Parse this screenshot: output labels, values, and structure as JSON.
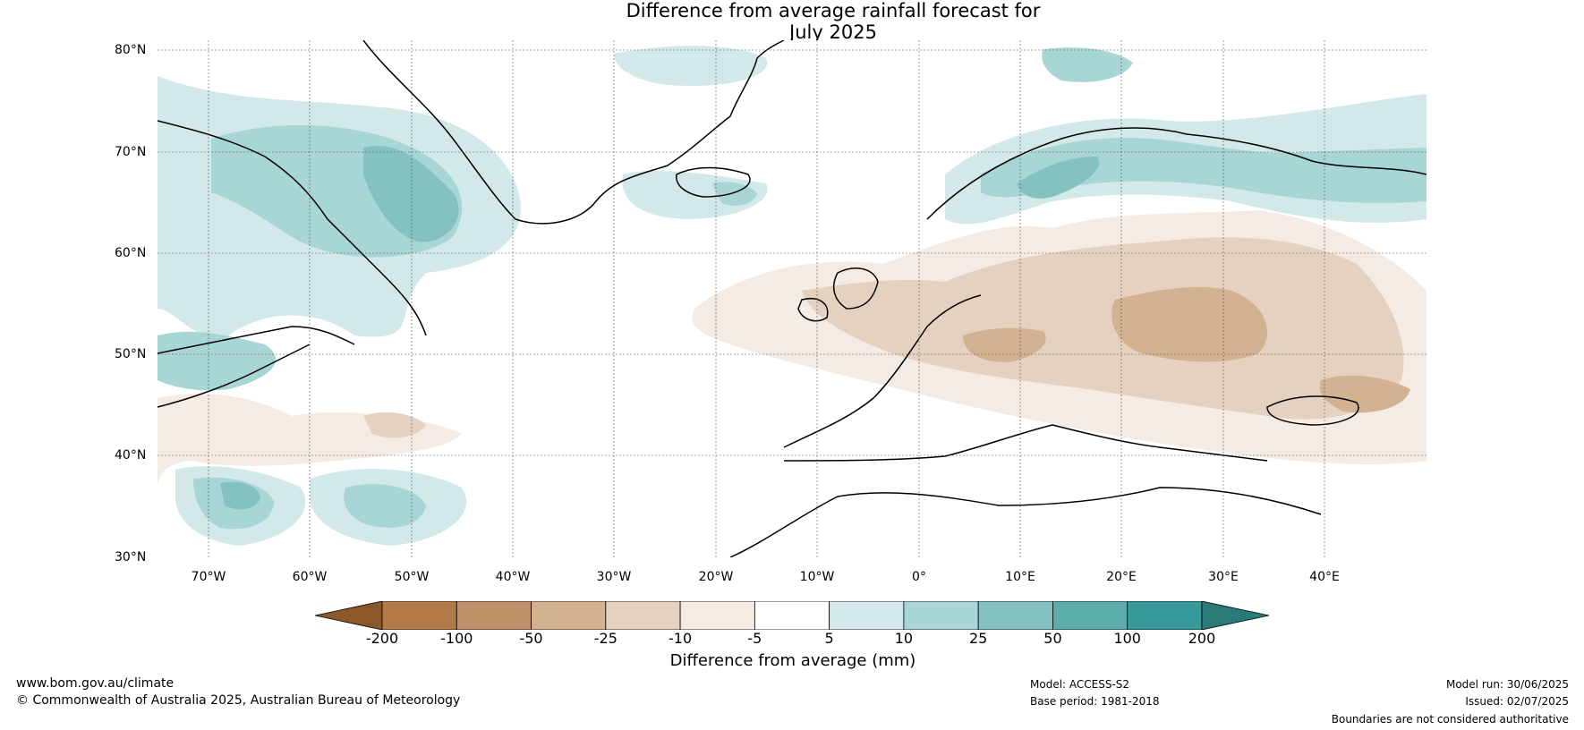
{
  "title": {
    "line1": "Difference from average rainfall forecast for",
    "line2": "July 2025"
  },
  "map": {
    "lat_labels": [
      "80°N",
      "70°N",
      "60°N",
      "50°N",
      "40°N",
      "30°N"
    ],
    "lon_labels": [
      "70°W",
      "60°W",
      "50°W",
      "40°W",
      "30°W",
      "20°W",
      "10°W",
      "0°",
      "10°E",
      "20°E",
      "30°E",
      "40°E"
    ],
    "colors": {
      "dry3": "#b27a47",
      "dry2": "#c09168",
      "dry1": "#d2b291",
      "dry0": "#e5d1bf",
      "dryx": "#f3ebe4",
      "wet0": "#d3e9e9",
      "wet1": "#a8d5d5",
      "wet2": "#84c1c1",
      "wet3": "#5dadad",
      "land": "#000000"
    }
  },
  "colorbar": {
    "ticks": [
      "-200",
      "-100",
      "-50",
      "-25",
      "-10",
      "-5",
      "5",
      "10",
      "25",
      "50",
      "100",
      "200"
    ],
    "colors": [
      "#8c5828",
      "#b27a47",
      "#c09168",
      "#d2b291",
      "#e5d1bf",
      "#f3ebe4",
      "#ffffff",
      "#d3e9e9",
      "#a8d5d5",
      "#84c1c1",
      "#5dadad",
      "#379a9a",
      "#2a7a7a"
    ],
    "label": "Difference from average (mm)"
  },
  "footer": {
    "url": "www.bom.gov.au/climate",
    "copyright": "© Commonwealth of Australia 2025, Australian Bureau of Meteorology",
    "model": "Model: ACCESS-S2",
    "base_period": "Base period: 1981-2018",
    "model_run": "Model run: 30/06/2025",
    "issued": "Issued: 02/07/2025",
    "disclaimer": "Boundaries are not considered authoritative"
  }
}
